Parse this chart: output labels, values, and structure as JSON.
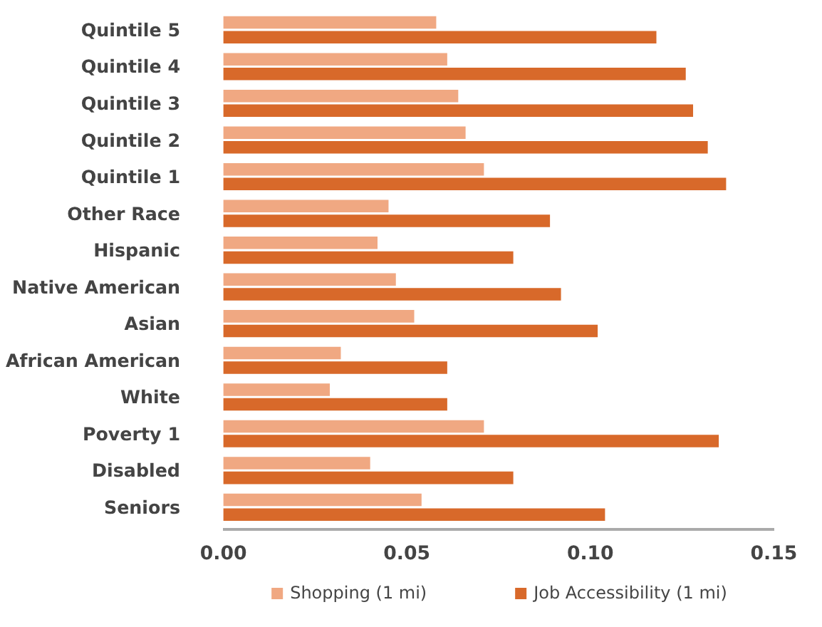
{
  "chart_data": {
    "type": "bar",
    "orientation": "horizontal",
    "categories": [
      "Quintile 5",
      "Quintile 4",
      "Quintile 3",
      "Quintile 2",
      "Quintile 1",
      "Other Race",
      "Hispanic",
      "Native American",
      "Asian",
      "African American",
      "White",
      "Poverty 1",
      "Disabled",
      "Seniors"
    ],
    "series": [
      {
        "name": "Shopping (1 mi)",
        "color": "#f0a882",
        "values": [
          0.058,
          0.061,
          0.064,
          0.066,
          0.071,
          0.045,
          0.042,
          0.047,
          0.052,
          0.032,
          0.029,
          0.071,
          0.04,
          0.054
        ]
      },
      {
        "name": "Job Accessibility (1 mi)",
        "color": "#d8692a",
        "values": [
          0.118,
          0.126,
          0.128,
          0.132,
          0.137,
          0.089,
          0.079,
          0.092,
          0.102,
          0.061,
          0.061,
          0.135,
          0.079,
          0.104
        ]
      }
    ],
    "xlim": [
      0,
      0.15
    ],
    "xticks": [
      {
        "value": 0,
        "label": "0.00"
      },
      {
        "value": 0.05,
        "label": "0.05"
      },
      {
        "value": 0.1,
        "label": "0.10"
      },
      {
        "value": 0.15,
        "label": "0.15"
      }
    ],
    "grid": false,
    "legend": "bottom"
  }
}
